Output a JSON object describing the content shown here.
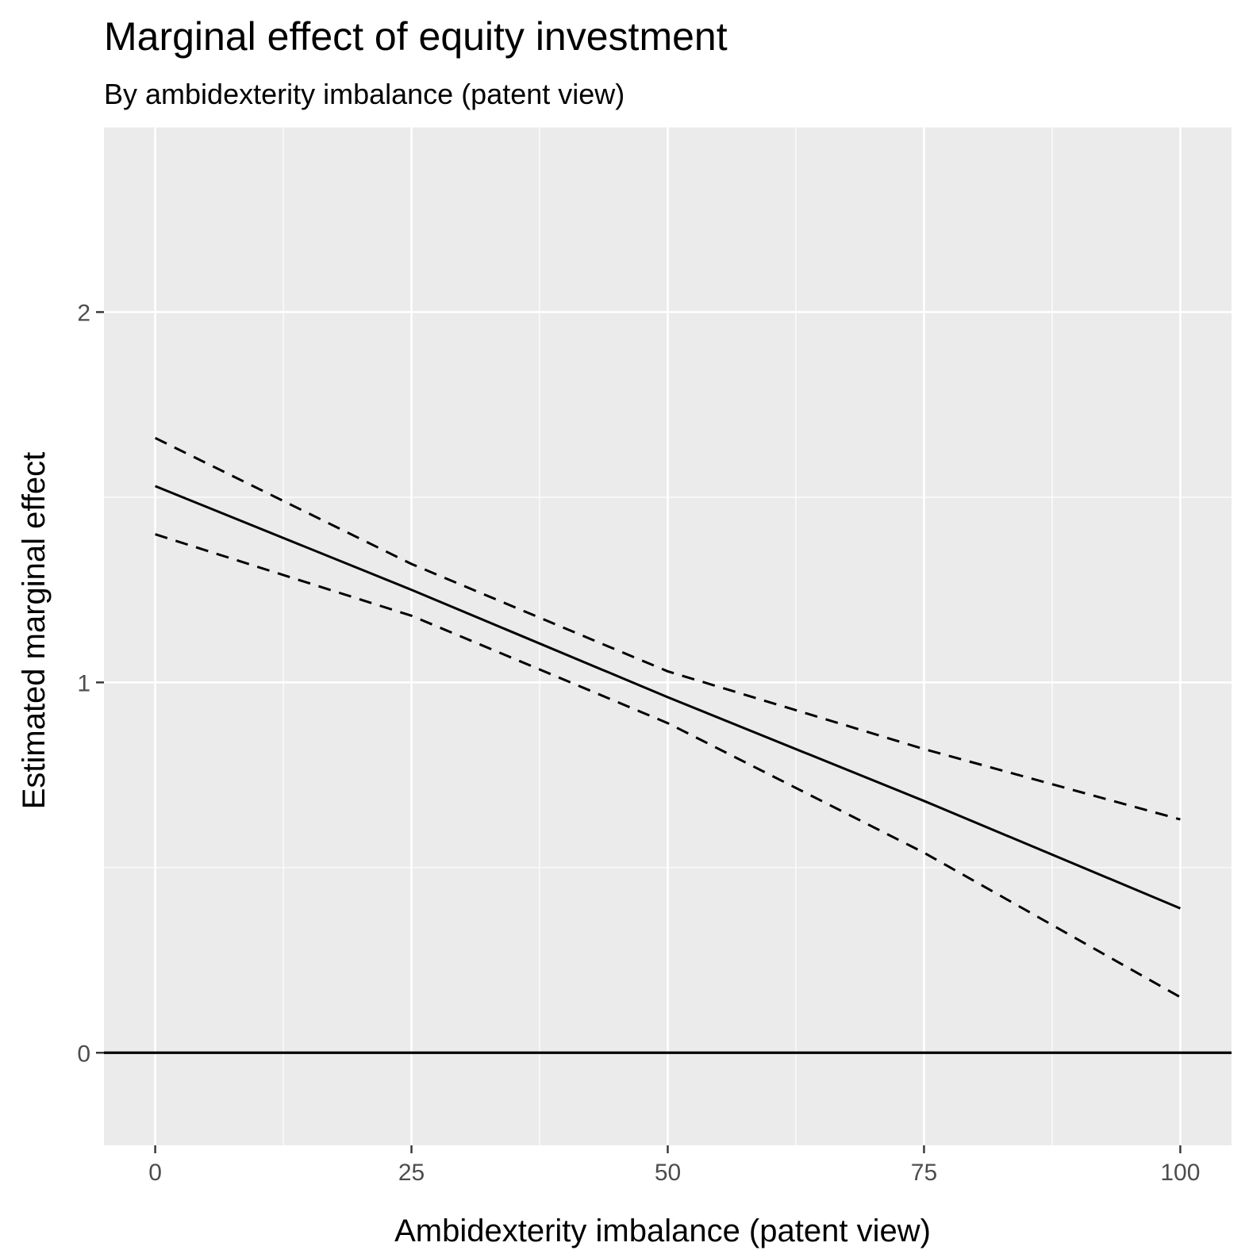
{
  "chart_data": {
    "type": "line",
    "title": "Marginal effect of equity investment",
    "subtitle": "By ambidexterity imbalance (patent view)",
    "xlabel": "Ambidexterity imbalance (patent view)",
    "ylabel": "Estimated marginal effect",
    "xlim": [
      -5,
      105
    ],
    "ylim": [
      -0.25,
      2.5
    ],
    "x_ticks": [
      0,
      25,
      50,
      75,
      100
    ],
    "x_tick_labels": [
      "0",
      "25",
      "50",
      "75",
      "100"
    ],
    "x_minor_ticks": [
      12.5,
      37.5,
      62.5,
      87.5
    ],
    "y_ticks": [
      0,
      1,
      2
    ],
    "y_tick_labels": [
      "0",
      "1",
      "2"
    ],
    "y_minor_ticks": [
      0.5,
      1.5,
      2.5
    ],
    "grid": true,
    "reference_line": {
      "y": 0,
      "style": "solid",
      "color": "#000000"
    },
    "panel_background": "#ebebeb",
    "grid_color": "#ffffff",
    "series": [
      {
        "style": "solid",
        "color": "#000000",
        "x": [
          0,
          25,
          50,
          75,
          100
        ],
        "y": [
          1.53,
          1.25,
          0.96,
          0.68,
          0.39
        ]
      },
      {
        "style": "dashed",
        "color": "#000000",
        "x": [
          0,
          25,
          50,
          75,
          100
        ],
        "y": [
          1.66,
          1.32,
          1.03,
          0.82,
          0.63
        ]
      },
      {
        "style": "dashed",
        "color": "#000000",
        "x": [
          0,
          25,
          50,
          75,
          100
        ],
        "y": [
          1.4,
          1.18,
          0.89,
          0.54,
          0.15
        ]
      }
    ]
  }
}
